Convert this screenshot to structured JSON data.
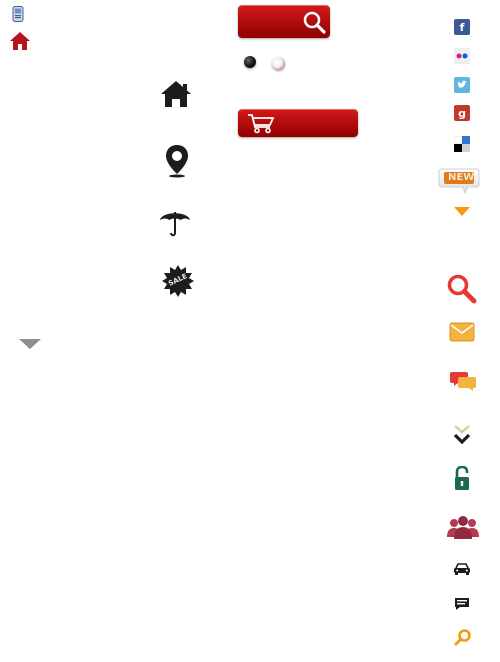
{
  "left_column": {
    "items": [
      {
        "name": "phone-icon"
      },
      {
        "name": "home-icon",
        "color": "#b5161b"
      },
      {
        "name": "arrow-down-icon",
        "color": "#8e8e8e"
      }
    ]
  },
  "center_icons": [
    {
      "name": "home-icon"
    },
    {
      "name": "map-pin-icon"
    },
    {
      "name": "umbrella-icon"
    },
    {
      "name": "sale-badge-icon",
      "label": "SALE"
    }
  ],
  "search_button": {
    "icon": "magnifier-icon",
    "color": "#c20f0f"
  },
  "slider_dots": [
    {
      "name": "dot-active"
    },
    {
      "name": "dot-inactive"
    }
  ],
  "cart_button": {
    "icon": "cart-icon",
    "color": "#c20f0f"
  },
  "right_column": {
    "social": [
      {
        "name": "facebook-icon",
        "glyph": "f",
        "color": "#3b5998"
      },
      {
        "name": "flickr-icon",
        "color": "#eeeeee"
      },
      {
        "name": "twitter-icon",
        "color": "#5fb6df"
      },
      {
        "name": "google-icon",
        "glyph": "g",
        "color": "#c0392b"
      },
      {
        "name": "delicious-icon"
      }
    ],
    "new_badge": {
      "label": "NEW"
    },
    "items": [
      {
        "name": "arrow-down-icon",
        "color": "#f39c12"
      },
      {
        "name": "search-icon",
        "color": "#e53935"
      },
      {
        "name": "mail-icon",
        "color": "#f3b33d"
      },
      {
        "name": "chat-icon",
        "color": "#f39c12"
      },
      {
        "name": "chevron-down-icon"
      },
      {
        "name": "unlock-icon",
        "color": "#1b6b4a"
      },
      {
        "name": "group-icon",
        "color": "#8e2b3f"
      },
      {
        "name": "car-icon"
      },
      {
        "name": "comment-icon"
      },
      {
        "name": "search-icon",
        "color": "#f39c12"
      }
    ]
  }
}
